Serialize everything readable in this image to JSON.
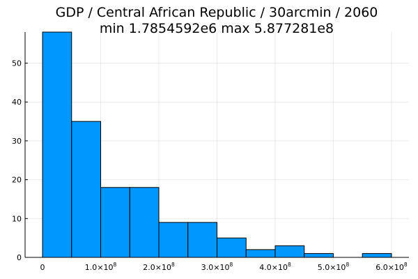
{
  "chart_data": {
    "type": "bar",
    "title": "GDP / Central African Republic / 30arcmin / 2060",
    "subtitle": "min 1.7854592e6  max 5.877281e8",
    "xlabel": "",
    "ylabel": "",
    "bar_color": "#0097ff",
    "grid": true,
    "legend": "none",
    "bins": [
      {
        "from": 0,
        "to": 50000000,
        "count": 58
      },
      {
        "from": 50000000,
        "to": 100000000,
        "count": 35
      },
      {
        "from": 100000000,
        "to": 150000000,
        "count": 18
      },
      {
        "from": 150000000,
        "to": 200000000,
        "count": 18
      },
      {
        "from": 200000000,
        "to": 250000000,
        "count": 9
      },
      {
        "from": 250000000,
        "to": 300000000,
        "count": 9
      },
      {
        "from": 300000000,
        "to": 350000000,
        "count": 5
      },
      {
        "from": 350000000,
        "to": 400000000,
        "count": 2
      },
      {
        "from": 400000000,
        "to": 450000000,
        "count": 3
      },
      {
        "from": 450000000,
        "to": 500000000,
        "count": 1
      },
      {
        "from": 500000000,
        "to": 550000000,
        "count": 0
      },
      {
        "from": 550000000,
        "to": 600000000,
        "count": 1
      }
    ],
    "xlim": [
      -30000000,
      630000000
    ],
    "ylim": [
      0,
      58
    ],
    "xticks": [
      {
        "value": 0,
        "mant": "0",
        "exp": ""
      },
      {
        "value": 100000000,
        "mant": "1.0×10",
        "exp": "8"
      },
      {
        "value": 200000000,
        "mant": "2.0×10",
        "exp": "8"
      },
      {
        "value": 300000000,
        "mant": "3.0×10",
        "exp": "8"
      },
      {
        "value": 400000000,
        "mant": "4.0×10",
        "exp": "8"
      },
      {
        "value": 500000000,
        "mant": "5.0×10",
        "exp": "8"
      },
      {
        "value": 600000000,
        "mant": "6.0×10",
        "exp": "8"
      }
    ],
    "yticks": [
      {
        "value": 0,
        "label": "0"
      },
      {
        "value": 10,
        "label": "10"
      },
      {
        "value": 20,
        "label": "20"
      },
      {
        "value": 30,
        "label": "30"
      },
      {
        "value": 40,
        "label": "40"
      },
      {
        "value": 50,
        "label": "50"
      }
    ]
  }
}
